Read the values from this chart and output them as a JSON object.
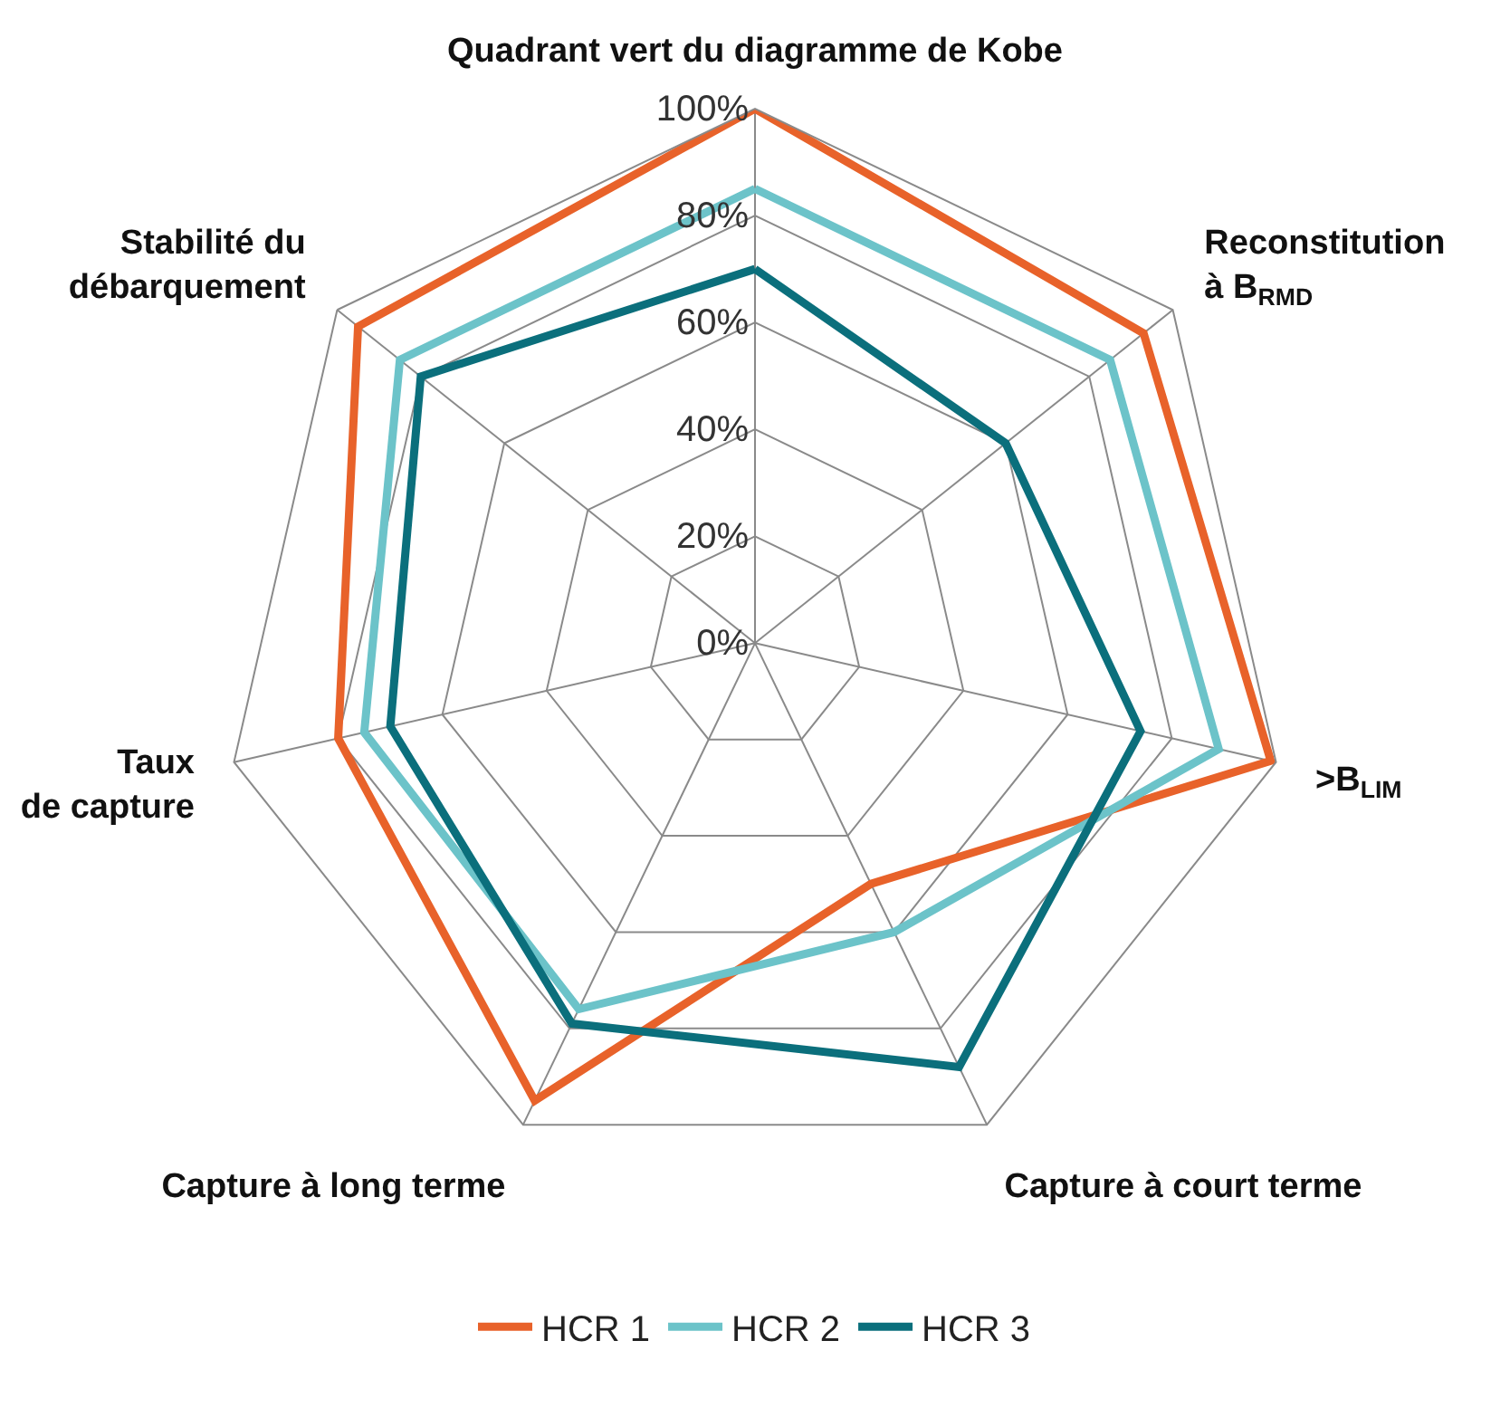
{
  "chart_data": {
    "type": "radar",
    "categories": [
      "Quadrant vert du diagramme de Kobe",
      "Reconstitution\nà B$_{RMD}$",
      ">B$_{LIM}$",
      "Capture à court terme",
      "Capture à long terme",
      "Taux\nde capture",
      "Stabilité du\ndébarquement"
    ],
    "series": [
      {
        "name": "HCR 1",
        "color": "#e8622a",
        "values": [
          100,
          93,
          99,
          50,
          95,
          80,
          95
        ]
      },
      {
        "name": "HCR 2",
        "color": "#6cc3c9",
        "values": [
          85,
          85,
          89,
          60,
          76,
          75,
          85
        ]
      },
      {
        "name": "HCR 3",
        "color": "#0b6f7c",
        "values": [
          70,
          60,
          74,
          88,
          79,
          70,
          80
        ]
      }
    ],
    "ylim": [
      0,
      100
    ],
    "yticks": [
      {
        "value": 0,
        "label": "0%"
      },
      {
        "value": 20,
        "label": "20%"
      },
      {
        "value": 40,
        "label": "40%"
      },
      {
        "value": 60,
        "label": "60%"
      },
      {
        "value": 80,
        "label": "80%"
      },
      {
        "value": 100,
        "label": "100%"
      }
    ],
    "grid": true,
    "legend": "bottom",
    "marker": "none",
    "line_style": "solid"
  }
}
